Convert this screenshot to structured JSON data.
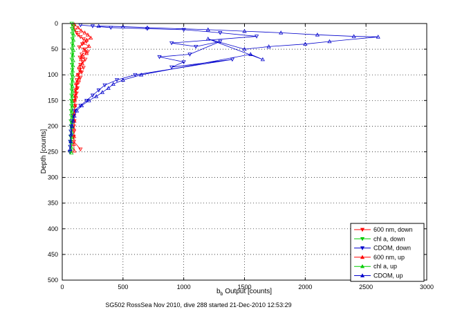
{
  "chart_data": {
    "type": "scatter",
    "xlabel_main": "b",
    "xlabel_sub": "b",
    "xlabel_rest": " Output [counts]",
    "ylabel": "Depth [counts]",
    "caption": "SG502 RossSea Nov 2010, dive 288 started 21-Dec-2010 12:53:29",
    "xlim": [
      0,
      3000
    ],
    "ylim": [
      0,
      500
    ],
    "y_reversed": true,
    "grid": true,
    "legend_position": "bottom-right",
    "xticks": [
      0,
      500,
      1000,
      1500,
      2000,
      2500,
      3000
    ],
    "yticks": [
      0,
      50,
      100,
      150,
      200,
      250,
      300,
      350,
      400,
      450,
      500
    ],
    "series": [
      {
        "name": "600 nm, down",
        "color": "#ff0000",
        "marker": "triangle-down",
        "points": [
          [
            95,
            5
          ],
          [
            105,
            12
          ],
          [
            118,
            18
          ],
          [
            130,
            22
          ],
          [
            150,
            26
          ],
          [
            175,
            30
          ],
          [
            200,
            35
          ],
          [
            165,
            40
          ],
          [
            140,
            46
          ],
          [
            185,
            50
          ],
          [
            210,
            55
          ],
          [
            160,
            60
          ],
          [
            145,
            66
          ],
          [
            190,
            70
          ],
          [
            170,
            75
          ],
          [
            150,
            80
          ],
          [
            175,
            86
          ],
          [
            140,
            90
          ],
          [
            160,
            95
          ],
          [
            130,
            100
          ],
          [
            150,
            105
          ],
          [
            120,
            110
          ],
          [
            135,
            115
          ],
          [
            115,
            120
          ],
          [
            125,
            126
          ],
          [
            110,
            130
          ],
          [
            118,
            136
          ],
          [
            105,
            140
          ],
          [
            112,
            146
          ],
          [
            100,
            150
          ],
          [
            108,
            160
          ],
          [
            100,
            170
          ],
          [
            96,
            180
          ],
          [
            100,
            190
          ],
          [
            95,
            200
          ],
          [
            98,
            210
          ],
          [
            94,
            220
          ],
          [
            96,
            230
          ],
          [
            150,
            245
          ]
        ]
      },
      {
        "name": "chl a, down",
        "color": "#00cc00",
        "marker": "triangle-down",
        "points": [
          [
            78,
            0
          ],
          [
            80,
            10
          ],
          [
            82,
            20
          ],
          [
            84,
            30
          ],
          [
            82,
            40
          ],
          [
            80,
            50
          ],
          [
            82,
            60
          ],
          [
            78,
            70
          ],
          [
            80,
            80
          ],
          [
            82,
            90
          ],
          [
            78,
            100
          ],
          [
            80,
            110
          ],
          [
            76,
            120
          ],
          [
            78,
            130
          ],
          [
            76,
            140
          ],
          [
            74,
            150
          ],
          [
            76,
            160
          ],
          [
            72,
            170
          ],
          [
            74,
            180
          ],
          [
            70,
            190
          ],
          [
            72,
            200
          ],
          [
            70,
            210
          ],
          [
            68,
            220
          ],
          [
            70,
            230
          ],
          [
            66,
            240
          ],
          [
            68,
            250
          ]
        ]
      },
      {
        "name": "CDOM, down",
        "color": "#0000cc",
        "marker": "triangle-down",
        "points": [
          [
            150,
            3
          ],
          [
            250,
            5
          ],
          [
            400,
            8
          ],
          [
            700,
            10
          ],
          [
            1000,
            12
          ],
          [
            1300,
            18
          ],
          [
            1600,
            25
          ],
          [
            900,
            38
          ],
          [
            1100,
            45
          ],
          [
            1300,
            35
          ],
          [
            1050,
            60
          ],
          [
            800,
            65
          ],
          [
            1000,
            75
          ],
          [
            900,
            85
          ],
          [
            1400,
            70
          ],
          [
            600,
            100
          ],
          [
            450,
            110
          ],
          [
            350,
            120
          ],
          [
            300,
            130
          ],
          [
            250,
            140
          ],
          [
            200,
            150
          ],
          [
            150,
            160
          ],
          [
            100,
            170
          ],
          [
            90,
            180
          ],
          [
            80,
            190
          ],
          [
            75,
            200
          ],
          [
            70,
            210
          ],
          [
            70,
            220
          ],
          [
            65,
            230
          ],
          [
            65,
            240
          ],
          [
            62,
            250
          ]
        ]
      },
      {
        "name": "600 nm, up",
        "color": "#ff0000",
        "marker": "triangle-up",
        "points": [
          [
            100,
            2
          ],
          [
            130,
            8
          ],
          [
            155,
            14
          ],
          [
            185,
            18
          ],
          [
            210,
            22
          ],
          [
            235,
            28
          ],
          [
            200,
            32
          ],
          [
            170,
            38
          ],
          [
            220,
            44
          ],
          [
            180,
            52
          ],
          [
            200,
            58
          ],
          [
            170,
            64
          ],
          [
            155,
            70
          ],
          [
            165,
            78
          ],
          [
            140,
            84
          ],
          [
            150,
            92
          ],
          [
            125,
            100
          ],
          [
            135,
            108
          ],
          [
            115,
            116
          ],
          [
            120,
            124
          ],
          [
            108,
            132
          ],
          [
            110,
            140
          ],
          [
            102,
            150
          ],
          [
            104,
            160
          ],
          [
            98,
            175
          ],
          [
            100,
            190
          ],
          [
            96,
            205
          ],
          [
            98,
            220
          ],
          [
            95,
            235
          ],
          [
            98,
            248
          ]
        ]
      },
      {
        "name": "chl a, up",
        "color": "#00cc00",
        "marker": "triangle-up",
        "points": [
          [
            90,
            2
          ],
          [
            92,
            12
          ],
          [
            94,
            22
          ],
          [
            92,
            32
          ],
          [
            90,
            42
          ],
          [
            92,
            52
          ],
          [
            88,
            62
          ],
          [
            90,
            72
          ],
          [
            88,
            82
          ],
          [
            86,
            92
          ],
          [
            88,
            102
          ],
          [
            86,
            112
          ],
          [
            84,
            122
          ],
          [
            86,
            132
          ],
          [
            84,
            142
          ],
          [
            82,
            152
          ],
          [
            84,
            162
          ],
          [
            80,
            172
          ],
          [
            82,
            182
          ],
          [
            80,
            192
          ],
          [
            78,
            202
          ],
          [
            80,
            212
          ],
          [
            78,
            222
          ],
          [
            76,
            232
          ],
          [
            78,
            242
          ],
          [
            76,
            252
          ]
        ]
      },
      {
        "name": "CDOM, up",
        "color": "#0000cc",
        "marker": "triangle-up",
        "points": [
          [
            300,
            5
          ],
          [
            500,
            6
          ],
          [
            700,
            8
          ],
          [
            1200,
            12
          ],
          [
            1500,
            15
          ],
          [
            1800,
            18
          ],
          [
            2100,
            22
          ],
          [
            2400,
            25
          ],
          [
            2600,
            26
          ],
          [
            2200,
            35
          ],
          [
            2000,
            40
          ],
          [
            1700,
            45
          ],
          [
            1500,
            50
          ],
          [
            1200,
            30
          ],
          [
            1650,
            70
          ],
          [
            1550,
            60
          ],
          [
            650,
            100
          ],
          [
            500,
            110
          ],
          [
            420,
            118
          ],
          [
            380,
            126
          ],
          [
            330,
            134
          ],
          [
            280,
            142
          ],
          [
            220,
            150
          ],
          [
            160,
            160
          ],
          [
            120,
            170
          ],
          [
            100,
            180
          ],
          [
            90,
            190
          ],
          [
            80,
            200
          ],
          [
            75,
            215
          ],
          [
            70,
            230
          ],
          [
            65,
            245
          ]
        ]
      }
    ]
  }
}
